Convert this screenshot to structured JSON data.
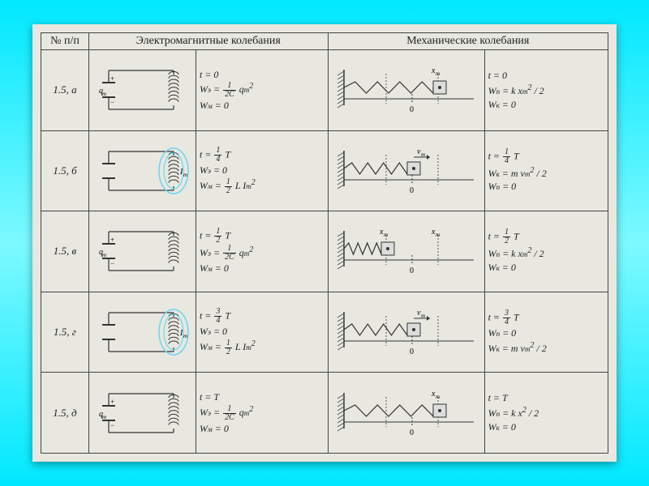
{
  "header": {
    "idx": "№\nп/п",
    "em": "Электромагнитные колебания",
    "mech": "Механические колебания"
  },
  "colors": {
    "bg": "#e8e8e0",
    "line": "#333",
    "field": "#6fd4f0",
    "wall": "#555",
    "mass": "#888"
  },
  "rows": [
    {
      "idx": "1.5, а",
      "em_state": "charged",
      "em_field": false,
      "em_eq": [
        "t = 0",
        "W_э = (1 / 2C) q_m²",
        "W_м = 0"
      ],
      "mech_state": "right",
      "mech_eq": [
        "t = 0",
        "W_п = k x_m² / 2",
        "W_к = 0"
      ]
    },
    {
      "idx": "1.5, б",
      "em_state": "current",
      "em_field": true,
      "em_eq": [
        "t = ¼ T",
        "W_э = 0",
        "W_м = ½ L I_m²"
      ],
      "mech_state": "center_moving",
      "mech_eq": [
        "t = ¼ T",
        "W_к = m v_m² / 2",
        "W_п = 0"
      ]
    },
    {
      "idx": "1.5, в",
      "em_state": "charged",
      "em_field": false,
      "em_eq": [
        "t = ½ T",
        "W_э = (1 / 2C) q_m²",
        "W_м = 0"
      ],
      "mech_state": "left",
      "mech_eq": [
        "t = ½ T",
        "W_п = k x_m² / 2",
        "W_к = 0"
      ]
    },
    {
      "idx": "1.5, г",
      "em_state": "current",
      "em_field": true,
      "em_eq": [
        "t = ¾ T",
        "W_э = 0",
        "W_м = ½ L I_m²"
      ],
      "mech_state": "center_moving",
      "mech_eq": [
        "t = ¾ T",
        "W_п = 0",
        "W_к = m v_m² / 2"
      ]
    },
    {
      "idx": "1.5, д",
      "em_state": "charged",
      "em_field": false,
      "em_eq": [
        "t = T",
        "W_э = (1 / 2C) q_m²",
        "W_м = 0"
      ],
      "mech_state": "right",
      "mech_eq": [
        "t = T",
        "W_п = k x² / 2",
        "W_к = 0"
      ]
    }
  ]
}
